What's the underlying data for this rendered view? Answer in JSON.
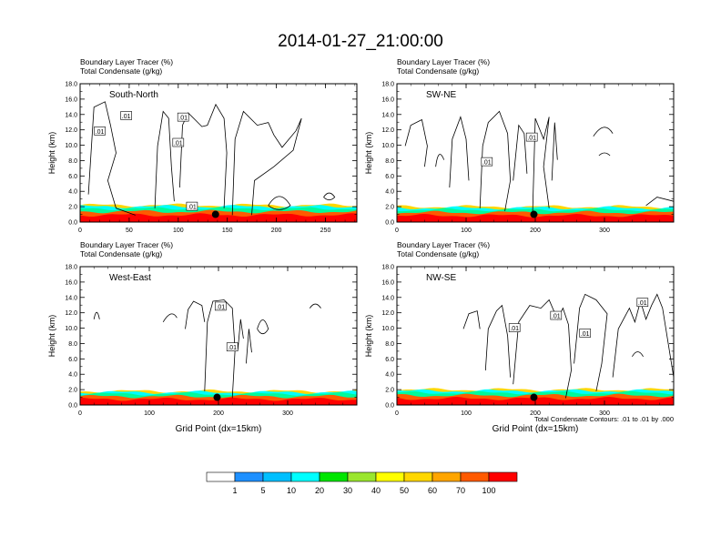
{
  "title": "2014-01-27_21:00:00",
  "footnote": "Total Condensate Contours: .01 to .01 by .000",
  "colorbar": {
    "labels": [
      "1",
      "5",
      "10",
      "20",
      "30",
      "40",
      "50",
      "60",
      "70",
      "100"
    ],
    "colors": [
      "#ffffff",
      "#1e90ff",
      "#00bfff",
      "#00ffff",
      "#00fa9a",
      "#00e600",
      "#9ae62e",
      "#ffff00",
      "#ffd700",
      "#ffa500",
      "#ff5a00",
      "#ff0000"
    ]
  },
  "chart_data": [
    {
      "type": "contour",
      "panel": "South-North",
      "subtitle_tracer": "Boundary Layer Tracer   (%)",
      "subtitle_condensate": "Total Condensate   (g/kg)",
      "ylabel": "Height (km)",
      "xlabel": "",
      "xlim": [
        0,
        282
      ],
      "ylim": [
        0,
        18
      ],
      "xticks": [
        "0",
        "50",
        "100",
        "150",
        "200",
        "250"
      ],
      "xtick_values": [
        0,
        50,
        100,
        150,
        200,
        250
      ],
      "yticks": [
        "0.0",
        "2.0",
        "4.0",
        "6.0",
        "8.0",
        "10.0",
        "12.0",
        "14.0",
        "16.0",
        "18.0"
      ],
      "contour_labels": [
        ".01",
        ".01",
        ".01",
        ".01",
        ".01"
      ],
      "contour_label_points": [
        [
          20,
          11.8
        ],
        [
          47,
          13.8
        ],
        [
          100,
          10.3
        ],
        [
          105,
          13.6
        ],
        [
          114,
          2.0
        ]
      ],
      "marker": {
        "x": 138,
        "y": 1.0
      },
      "tracer_top_km": 2.2
    },
    {
      "type": "contour",
      "panel": "SW-NE",
      "subtitle_tracer": "Boundary Layer Tracer   (%)",
      "subtitle_condensate": "Total Condensate   (g/kg)",
      "ylabel": "Height (km)",
      "xlabel": "",
      "xlim": [
        0,
        400
      ],
      "ylim": [
        0,
        18
      ],
      "xticks": [
        "0",
        "100",
        "200",
        "300"
      ],
      "xtick_values": [
        0,
        100,
        200,
        300
      ],
      "yticks": [
        "0.0",
        "2.0",
        "4.0",
        "6.0",
        "8.0",
        "10.0",
        "12.0",
        "14.0",
        "16.0",
        "18.0"
      ],
      "contour_labels": [
        ".01",
        ".01"
      ],
      "contour_label_points": [
        [
          195,
          11.0
        ],
        [
          130,
          7.8
        ]
      ],
      "marker": {
        "x": 198,
        "y": 1.0
      },
      "tracer_top_km": 2.0
    },
    {
      "type": "contour",
      "panel": "West-East",
      "subtitle_tracer": "Boundary Layer Tracer   (%)",
      "subtitle_condensate": "Total Condensate   (g/kg)",
      "ylabel": "Height (km)",
      "xlabel": "Grid Point (dx=15km)",
      "xlim": [
        0,
        400
      ],
      "ylim": [
        0,
        18
      ],
      "xticks": [
        "0",
        "100",
        "200",
        "300"
      ],
      "xtick_values": [
        0,
        100,
        200,
        300
      ],
      "yticks": [
        "0.0",
        "2.0",
        "4.0",
        "6.0",
        "8.0",
        "10.0",
        "12.0",
        "14.0",
        "16.0",
        "18.0"
      ],
      "contour_labels": [
        ".01",
        ".01"
      ],
      "contour_label_points": [
        [
          203,
          12.8
        ],
        [
          220,
          7.5
        ]
      ],
      "marker": {
        "x": 198,
        "y": 1.0
      },
      "tracer_top_km": 1.8
    },
    {
      "type": "contour",
      "panel": "NW-SE",
      "subtitle_tracer": "Boundary Layer Tracer   (%)",
      "subtitle_condensate": "Total Condensate   (g/kg)",
      "ylabel": "Height (km)",
      "xlabel": "Grid Point (dx=15km)",
      "xlim": [
        0,
        400
      ],
      "ylim": [
        0,
        18
      ],
      "xticks": [
        "0",
        "100",
        "200",
        "300"
      ],
      "xtick_values": [
        0,
        100,
        200,
        300
      ],
      "yticks": [
        "0.0",
        "2.0",
        "4.0",
        "6.0",
        "8.0",
        "10.0",
        "12.0",
        "14.0",
        "16.0",
        "18.0"
      ],
      "contour_labels": [
        ".01",
        ".01",
        ".01",
        ".01"
      ],
      "contour_label_points": [
        [
          170,
          10.0
        ],
        [
          230,
          11.6
        ],
        [
          272,
          9.3
        ],
        [
          355,
          13.3
        ]
      ],
      "marker": {
        "x": 198,
        "y": 1.0
      },
      "tracer_top_km": 2.0
    }
  ]
}
